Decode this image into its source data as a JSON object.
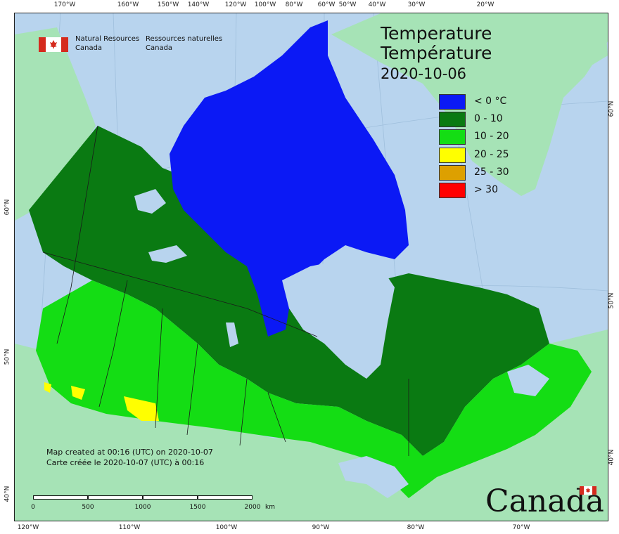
{
  "map": {
    "title_en": "Temperature",
    "title_fr": "Température",
    "date": "2020-10-06",
    "legend": [
      {
        "label": "< 0 °C",
        "color": "#0b19f5"
      },
      {
        "label": "0 - 10",
        "color": "#0a7a12"
      },
      {
        "label": "10 - 20",
        "color": "#14dd14"
      },
      {
        "label": "20 - 25",
        "color": "#ffff00"
      },
      {
        "label": "25 - 30",
        "color": "#dda000"
      },
      {
        "label": "> 30",
        "color": "#ff0000"
      }
    ],
    "colors": {
      "ocean": "#b8d4ee",
      "other_land": "#a6e3b6",
      "lakes": "#b8d4ee"
    }
  },
  "nrcan": {
    "en_line1": "Natural Resources",
    "en_line2": "Canada",
    "fr_line1": "Ressources naturelles",
    "fr_line2": "Canada"
  },
  "footer": {
    "created_en": "Map created at 00:16 (UTC) on 2020-10-07",
    "created_fr": "Carte créée le 2020-10-07 (UTC) à 00:16",
    "wordmark": "Canada"
  },
  "scalebar": {
    "labels": [
      "0",
      "500",
      "1000",
      "1500",
      "2000",
      "km"
    ]
  },
  "graticule": {
    "top": [
      "170°W",
      "160°W",
      "150°W",
      "140°W",
      "120°W",
      "100°W",
      "80°W",
      "60°W",
      "50°W",
      "40°W",
      "30°W",
      "20°W"
    ],
    "bottom": [
      "120°W",
      "110°W",
      "100°W",
      "90°W",
      "80°W",
      "70°W"
    ],
    "left": [
      "60°N",
      "50°N",
      "40°N"
    ],
    "right": [
      "60°N",
      "50°N",
      "40°N"
    ]
  }
}
